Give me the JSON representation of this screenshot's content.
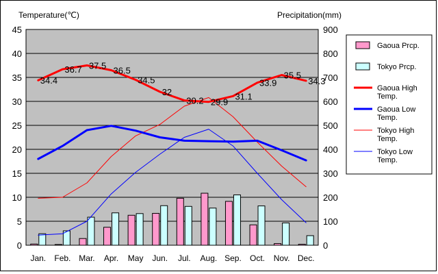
{
  "chart_data": {
    "type": "bar+line",
    "categories": [
      "Jan.",
      "Feb.",
      "Mar.",
      "Apr.",
      "May",
      "Jun.",
      "Jul.",
      "Aug.",
      "Sep.",
      "Oct.",
      "Nov.",
      "Dec."
    ],
    "left_axis": {
      "label": "Temperature(℃)",
      "min": 0,
      "max": 45,
      "ticks": [
        0,
        5,
        10,
        15,
        20,
        25,
        30,
        35,
        40,
        45
      ]
    },
    "right_axis": {
      "label": "Precipitation(mm)",
      "min": 0,
      "max": 900,
      "ticks": [
        0,
        100,
        200,
        300,
        400,
        500,
        600,
        700,
        800,
        900
      ]
    },
    "grid": true,
    "legend_position": "right",
    "bar_series": [
      {
        "name": "Gaoua Prcp.",
        "color": "#ff99cc",
        "values": [
          5,
          3,
          28,
          75,
          125,
          133,
          196,
          217,
          183,
          85,
          7,
          4
        ]
      },
      {
        "name": "Tokyo Prcp.",
        "color": "#ccffff",
        "values": [
          48,
          60,
          117,
          135,
          132,
          165,
          162,
          155,
          210,
          164,
          93,
          40
        ]
      }
    ],
    "line_series": [
      {
        "name": "Gaoua High Temp.",
        "color": "#ff0000",
        "width": 3,
        "values": [
          34.4,
          36.7,
          37.5,
          36.5,
          34.5,
          32,
          30.2,
          29.9,
          31.1,
          33.9,
          35.5,
          34.3
        ],
        "labels": [
          "34.4",
          "36.7",
          "37.5",
          "36.5",
          "34.5",
          "32",
          "30.2",
          "29.9",
          "31.1",
          "33.9",
          "35.5",
          "34.3"
        ]
      },
      {
        "name": "Gaoua Low Temp.",
        "color": "#0000ff",
        "width": 3,
        "values": [
          18,
          20.7,
          24,
          24.9,
          23.9,
          22.5,
          21.8,
          21.7,
          21.6,
          21.8,
          19.8,
          17.7
        ]
      },
      {
        "name": "Tokyo High Temp.",
        "color": "#ff0000",
        "width": 1,
        "values": [
          9.8,
          10,
          13,
          18.5,
          22.8,
          25.2,
          29,
          30.8,
          26.8,
          21.5,
          16.5,
          12.2
        ]
      },
      {
        "name": "Tokyo Low Temp.",
        "color": "#0000ff",
        "width": 1,
        "values": [
          2.1,
          2.4,
          5,
          10.7,
          15.2,
          19,
          22.5,
          24.2,
          20.7,
          15,
          9.5,
          4.7
        ]
      }
    ],
    "legend": [
      {
        "kind": "bar",
        "series": 0,
        "label_lines": [
          "Gaoua Prcp."
        ]
      },
      {
        "kind": "bar",
        "series": 1,
        "label_lines": [
          "Tokyo Prcp."
        ]
      },
      {
        "kind": "line",
        "series": 0,
        "label_lines": [
          "Gaoua High",
          "Temp."
        ]
      },
      {
        "kind": "line",
        "series": 1,
        "label_lines": [
          "Gaoua Low",
          "Temp."
        ]
      },
      {
        "kind": "line",
        "series": 2,
        "label_lines": [
          "Tokyo High",
          "Temp."
        ]
      },
      {
        "kind": "line",
        "series": 3,
        "label_lines": [
          "Tokyo Low",
          "Temp."
        ]
      }
    ],
    "plot_background": "#c0c0c0"
  }
}
